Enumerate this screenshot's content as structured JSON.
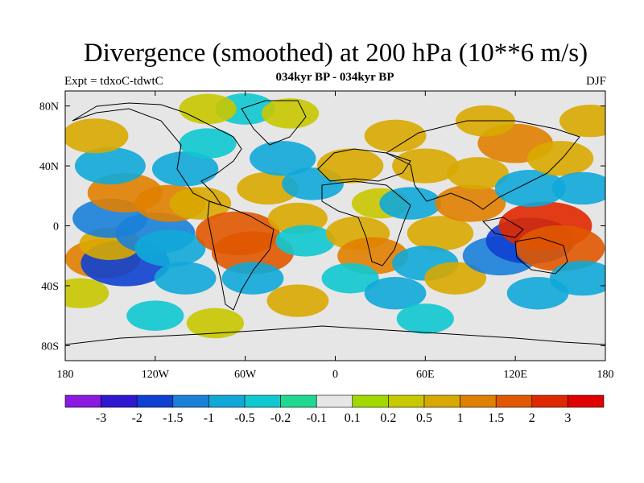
{
  "header": {
    "title": "Divergence (smoothed) at 200 hPa (10**6 m/s)",
    "subtitle": "034kyr BP - 034kyr BP",
    "experiment": "Expt = tdxoC-tdwtC",
    "season": "DJF"
  },
  "map": {
    "projection": "cylindrical-equidistant",
    "lon_range": [
      -180,
      180
    ],
    "lat_range": [
      -90,
      90
    ],
    "lat_ticks": [
      {
        "value": 80,
        "label": "80N"
      },
      {
        "value": 40,
        "label": "40N"
      },
      {
        "value": 0,
        "label": "0"
      },
      {
        "value": -40,
        "label": "40S"
      },
      {
        "value": -80,
        "label": "80S"
      }
    ],
    "lon_ticks": [
      {
        "value": -180,
        "label": "180"
      },
      {
        "value": -120,
        "label": "120W"
      },
      {
        "value": -60,
        "label": "60W"
      },
      {
        "value": 0,
        "label": "0"
      },
      {
        "value": 60,
        "label": "60E"
      },
      {
        "value": 120,
        "label": "120E"
      },
      {
        "value": 180,
        "label": "180"
      }
    ],
    "field": [
      {
        "lon": -155,
        "lat": -22,
        "value": 1.2
      },
      {
        "lon": -140,
        "lat": -25,
        "value": -1.8
      },
      {
        "lon": -150,
        "lat": -12,
        "value": 0.6
      },
      {
        "lon": -150,
        "lat": 5,
        "value": -1.2
      },
      {
        "lon": -120,
        "lat": -5,
        "value": -1.4
      },
      {
        "lon": -110,
        "lat": -15,
        "value": -1.0
      },
      {
        "lon": -100,
        "lat": -35,
        "value": -0.6
      },
      {
        "lon": -140,
        "lat": 22,
        "value": 1.2
      },
      {
        "lon": -110,
        "lat": 15,
        "value": 1.0
      },
      {
        "lon": -150,
        "lat": 40,
        "value": -1.0
      },
      {
        "lon": -100,
        "lat": 38,
        "value": -0.8
      },
      {
        "lon": -160,
        "lat": 60,
        "value": 0.8
      },
      {
        "lon": -90,
        "lat": 15,
        "value": 0.6
      },
      {
        "lon": -85,
        "lat": 55,
        "value": -0.4
      },
      {
        "lon": -60,
        "lat": 78,
        "value": -0.5
      },
      {
        "lon": -85,
        "lat": 78,
        "value": 0.4
      },
      {
        "lon": -65,
        "lat": -5,
        "value": 1.6
      },
      {
        "lon": -55,
        "lat": -18,
        "value": 1.5
      },
      {
        "lon": -55,
        "lat": -35,
        "value": -0.6
      },
      {
        "lon": -45,
        "lat": 25,
        "value": 0.6
      },
      {
        "lon": -35,
        "lat": 45,
        "value": -0.8
      },
      {
        "lon": -15,
        "lat": 28,
        "value": -0.6
      },
      {
        "lon": -25,
        "lat": 5,
        "value": 0.5
      },
      {
        "lon": -20,
        "lat": -10,
        "value": -0.5
      },
      {
        "lon": -25,
        "lat": -50,
        "value": 0.6
      },
      {
        "lon": 10,
        "lat": 40,
        "value": 0.8
      },
      {
        "lon": 30,
        "lat": 15,
        "value": 0.4
      },
      {
        "lon": 15,
        "lat": -5,
        "value": 0.7
      },
      {
        "lon": 25,
        "lat": -20,
        "value": 1.0
      },
      {
        "lon": 10,
        "lat": -35,
        "value": -0.4
      },
      {
        "lon": 40,
        "lat": 60,
        "value": 0.6
      },
      {
        "lon": 60,
        "lat": 40,
        "value": 0.8
      },
      {
        "lon": 50,
        "lat": 15,
        "value": -0.6
      },
      {
        "lon": 70,
        "lat": -5,
        "value": 0.8
      },
      {
        "lon": 60,
        "lat": -25,
        "value": -0.8
      },
      {
        "lon": 80,
        "lat": -35,
        "value": 0.6
      },
      {
        "lon": 90,
        "lat": 15,
        "value": 1.0
      },
      {
        "lon": 95,
        "lat": 35,
        "value": 0.6
      },
      {
        "lon": 110,
        "lat": -20,
        "value": -1.2
      },
      {
        "lon": 130,
        "lat": -10,
        "value": -1.8
      },
      {
        "lon": 140,
        "lat": 0,
        "value": 2.0
      },
      {
        "lon": 150,
        "lat": -15,
        "value": 1.8
      },
      {
        "lon": 130,
        "lat": 25,
        "value": -1.0
      },
      {
        "lon": 120,
        "lat": 55,
        "value": 1.2
      },
      {
        "lon": 150,
        "lat": 45,
        "value": 0.8
      },
      {
        "lon": 165,
        "lat": 25,
        "value": -0.6
      },
      {
        "lon": 165,
        "lat": -35,
        "value": -0.8
      },
      {
        "lon": 135,
        "lat": -45,
        "value": -0.6
      },
      {
        "lon": 40,
        "lat": -45,
        "value": -0.6
      },
      {
        "lon": -170,
        "lat": -45,
        "value": 0.4
      },
      {
        "lon": 100,
        "lat": 70,
        "value": 0.5
      },
      {
        "lon": -30,
        "lat": 75,
        "value": 0.4
      },
      {
        "lon": 170,
        "lat": 70,
        "value": 0.6
      },
      {
        "lon": -120,
        "lat": -60,
        "value": -0.4
      },
      {
        "lon": 60,
        "lat": -62,
        "value": -0.4
      },
      {
        "lon": -80,
        "lat": -65,
        "value": 0.4
      }
    ]
  },
  "colorbar": {
    "levels": [
      "-3",
      "-2",
      "-1.5",
      "-1",
      "-0.5",
      "-0.2",
      "-0.1",
      "0.1",
      "0.2",
      "0.5",
      "1",
      "1.5",
      "2",
      "3"
    ],
    "colors": [
      "#8a1ae0",
      "#3018d0",
      "#1040d0",
      "#1a80d8",
      "#10a8d8",
      "#10c8d0",
      "#20d890",
      "#e6e6e6",
      "#a0d800",
      "#c8c800",
      "#d8a800",
      "#e08000",
      "#e05800",
      "#e02800",
      "#e00000"
    ]
  }
}
